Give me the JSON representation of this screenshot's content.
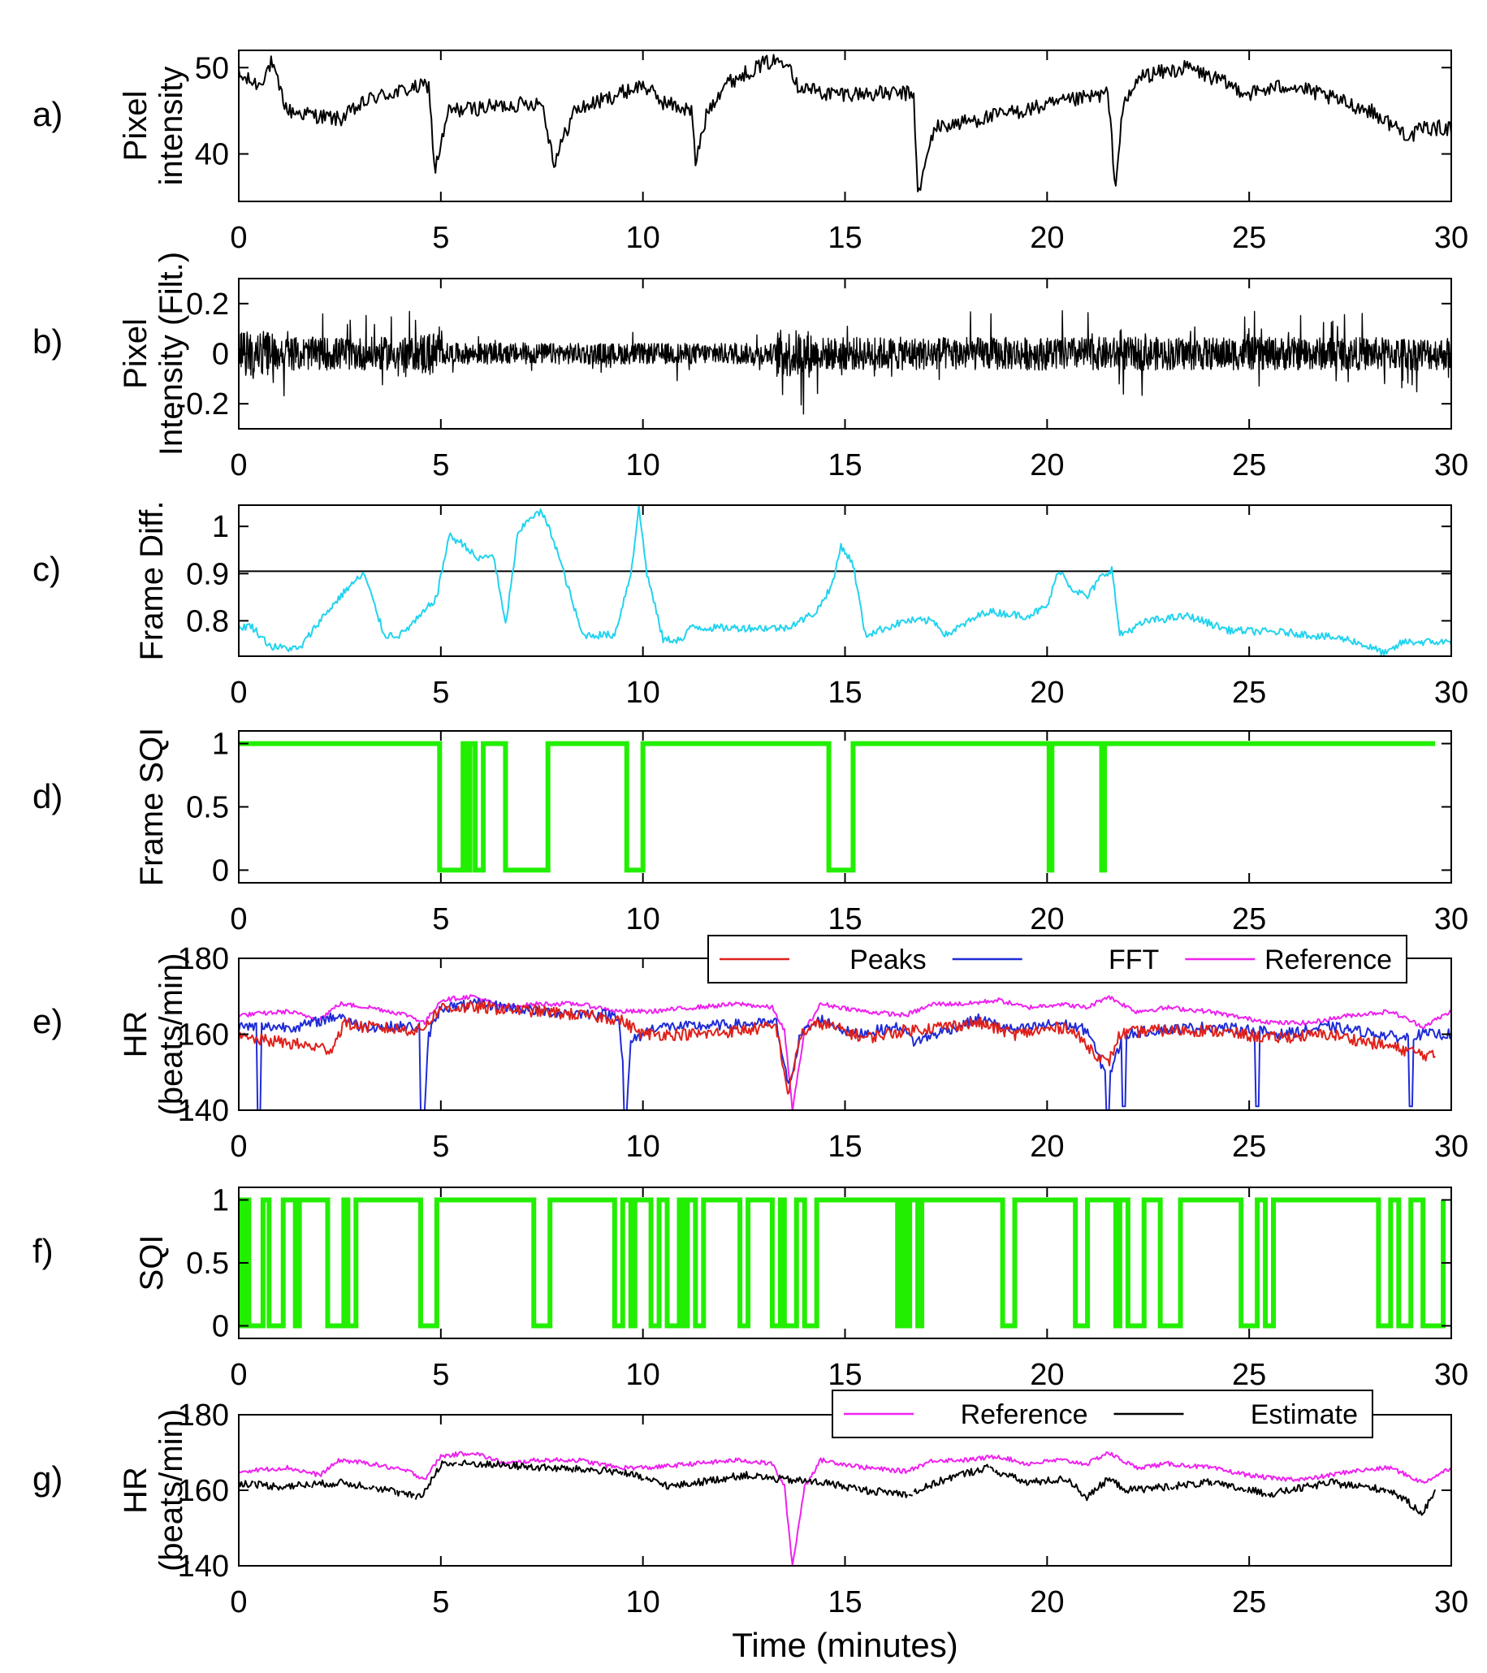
{
  "figure": {
    "xlabel": "Time (minutes)",
    "xlim": [
      0,
      30
    ],
    "xticks": [
      "0",
      "5",
      "10",
      "15",
      "20",
      "25",
      "30"
    ]
  },
  "chart_data": [
    {
      "panel": "a)",
      "type": "line",
      "ylabel": [
        "Pixel",
        "intensity"
      ],
      "ylim": [
        34.5,
        52
      ],
      "yticks": [
        "40",
        "50"
      ],
      "yticks_values": [
        40,
        50
      ],
      "series": [
        {
          "color": "#000000",
          "kind": "noisy",
          "x": [
            0,
            0.5,
            0.8,
            1.2,
            2.5,
            3.3,
            4.7,
            4.85,
            5.2,
            7.5,
            7.8,
            8.3,
            10,
            10.5,
            11.2,
            11.3,
            11.6,
            12,
            13,
            13.6,
            13.8,
            14.5,
            16.7,
            16.8,
            17.2,
            21.5,
            21.7,
            21.85,
            22.3,
            23.5,
            25,
            26,
            28,
            29,
            29.3,
            30
          ],
          "y": [
            49,
            48,
            50.5,
            45,
            44,
            46.5,
            48,
            38,
            45,
            46,
            39,
            45,
            48,
            46,
            45,
            39,
            45,
            48,
            50.5,
            51,
            48,
            47,
            47,
            35,
            43,
            47,
            36,
            45,
            49,
            50,
            47,
            48,
            45,
            42,
            43,
            43
          ],
          "noise": 0.9
        }
      ]
    },
    {
      "panel": "b)",
      "type": "line",
      "ylabel": [
        "Pixel",
        "Intensity (Filt.)"
      ],
      "ylim": [
        -0.3,
        0.3
      ],
      "yticks": [
        "-0.2",
        "0",
        "0.2"
      ],
      "yticks_values": [
        -0.2,
        0,
        0.2
      ],
      "series": [
        {
          "color": "#000000",
          "kind": "oscillation",
          "amplitude": 0.06
        }
      ]
    },
    {
      "panel": "c)",
      "type": "line",
      "ylabel": [
        "Frame Diff."
      ],
      "ylim": [
        0.725,
        1.045
      ],
      "yticks": [
        "0.8",
        "0.9",
        "1"
      ],
      "yticks_values": [
        0.8,
        0.9,
        1
      ],
      "reference_line": 0.905,
      "series": [
        {
          "color": "#22d3ee",
          "kind": "noisy",
          "x": [
            0,
            0.3,
            0.8,
            1.5,
            2.0,
            2.7,
            3.1,
            3.6,
            4.0,
            4.5,
            4.9,
            5.2,
            5.6,
            5.9,
            6.3,
            6.6,
            6.9,
            7.2,
            7.5,
            7.8,
            8.5,
            9.3,
            9.7,
            9.9,
            10.1,
            10.5,
            11.0,
            11.2,
            11.5,
            13.5,
            13.9,
            14.3,
            14.7,
            14.9,
            15.2,
            15.5,
            16.5,
            17.2,
            17.5,
            18.5,
            19.5,
            20.0,
            20.3,
            20.6,
            21.0,
            21.3,
            21.6,
            21.8,
            22.5,
            23.5,
            24.5,
            26,
            27.5,
            28.4,
            28.8,
            30
          ],
          "y": [
            0.785,
            0.79,
            0.745,
            0.74,
            0.8,
            0.87,
            0.9,
            0.77,
            0.77,
            0.81,
            0.85,
            0.98,
            0.96,
            0.93,
            0.94,
            0.79,
            0.98,
            1.02,
            1.03,
            0.97,
            0.77,
            0.77,
            0.9,
            1.04,
            0.9,
            0.76,
            0.76,
            0.79,
            0.785,
            0.785,
            0.8,
            0.82,
            0.88,
            0.96,
            0.92,
            0.77,
            0.8,
            0.8,
            0.77,
            0.82,
            0.81,
            0.83,
            0.91,
            0.87,
            0.85,
            0.89,
            0.91,
            0.77,
            0.8,
            0.81,
            0.78,
            0.775,
            0.76,
            0.73,
            0.755,
            0.755
          ],
          "noise": 0.008
        }
      ]
    },
    {
      "panel": "d)",
      "type": "step",
      "ylabel": [
        "Frame SQI"
      ],
      "ylim": [
        -0.1,
        1.1
      ],
      "yticks": [
        "0",
        "0.5",
        "1"
      ],
      "yticks_values": [
        0,
        0.5,
        1
      ],
      "series": [
        {
          "color": "#22ee00",
          "width": 6,
          "xmax": 29.6,
          "segments_zero": [
            [
              4.97,
              5.55
            ],
            [
              5.65,
              5.72
            ],
            [
              5.85,
              6.05
            ],
            [
              6.6,
              7.65
            ],
            [
              9.6,
              10.0
            ],
            [
              14.6,
              15.2
            ],
            [
              20.05,
              20.12
            ],
            [
              21.35,
              21.42
            ]
          ]
        }
      ]
    },
    {
      "panel": "e)",
      "type": "line",
      "ylabel": [
        "HR",
        "(beats/min)"
      ],
      "ylim": [
        140,
        180
      ],
      "yticks": [
        "140",
        "160",
        "180"
      ],
      "yticks_values": [
        140,
        160,
        180
      ],
      "legend": {
        "placement": "top-right",
        "entries": [
          {
            "name": "Peaks",
            "color": "#e0201a"
          },
          {
            "name": "FFT",
            "color": "#1f2bd6"
          },
          {
            "name": "Reference",
            "color": "#ee22ee"
          }
        ]
      },
      "series": [
        {
          "name": "Reference",
          "color": "#ee22ee",
          "kind": "noisy",
          "x": [
            0,
            1.2,
            2,
            2.5,
            3.3,
            4.2,
            4.6,
            5,
            5.8,
            6.6,
            7.4,
            8.4,
            9.4,
            10.2,
            11.2,
            12.4,
            13.2,
            13.5,
            13.7,
            14.0,
            14.4,
            15.5,
            16.5,
            17.2,
            18,
            18.8,
            19.5,
            20.3,
            21.0,
            21.5,
            22.2,
            23,
            24,
            25,
            25.7,
            26.5,
            27.5,
            28.5,
            29.3,
            30
          ],
          "y": [
            165,
            166,
            164,
            168,
            167,
            165,
            163,
            169,
            170,
            167,
            168,
            168,
            166,
            166,
            167,
            168,
            167,
            161,
            140,
            161,
            168,
            166,
            165,
            168,
            168,
            169,
            167,
            168,
            167,
            170,
            166,
            167,
            166,
            164,
            163,
            163,
            165,
            166,
            162,
            166
          ],
          "noise": 0.6
        },
        {
          "name": "FFT",
          "color": "#1f2bd6",
          "kind": "noisy",
          "x": [
            0,
            0.5,
            1.5,
            2.5,
            3.0,
            4.5,
            4.6,
            4.7,
            5,
            6,
            7.5,
            9.4,
            9.6,
            9.7,
            10.3,
            11,
            13.3,
            13.6,
            13.9,
            14.4,
            15.2,
            16.4,
            16.7,
            18.3,
            19.2,
            20.3,
            21.0,
            21.5,
            21.9,
            22.6,
            24,
            25.2,
            25.8,
            27,
            28.8,
            29.3,
            30
          ],
          "y": [
            162,
            162,
            162,
            165,
            162,
            162,
            140,
            160,
            167,
            168,
            166,
            165,
            140,
            158,
            162,
            162,
            163,
            146,
            160,
            164,
            160,
            162,
            158,
            164,
            161,
            163,
            161,
            148,
            160,
            161,
            162,
            161,
            160,
            162,
            159,
            160,
            160
          ],
          "noise": 1.4,
          "dips": [
            [
              0.5,
              140
            ],
            [
              4.55,
              140
            ],
            [
              9.55,
              140
            ],
            [
              21.5,
              140
            ],
            [
              21.9,
              141
            ],
            [
              25.2,
              141
            ],
            [
              29.0,
              141
            ]
          ]
        },
        {
          "name": "Peaks",
          "color": "#e0201a",
          "kind": "noisy",
          "xmax": 29.6,
          "x": [
            0,
            1,
            2.3,
            2.6,
            3.0,
            4.5,
            5,
            6,
            7.5,
            9.4,
            10,
            11.5,
            13.3,
            13.6,
            13.9,
            14.4,
            15.5,
            16.5,
            18.3,
            19.2,
            20.5,
            21.0,
            21.5,
            21.8,
            22.5,
            24,
            25.5,
            27,
            28.8,
            29.6
          ],
          "y": [
            159,
            158,
            156,
            163,
            162,
            161,
            167,
            167,
            166,
            164,
            160,
            160,
            162,
            144,
            160,
            163,
            159,
            161,
            163,
            160,
            162,
            157,
            152,
            160,
            161,
            161,
            159,
            160,
            156,
            154
          ],
          "noise": 1.6
        }
      ]
    },
    {
      "panel": "f)",
      "type": "step",
      "ylabel": [
        "SQI"
      ],
      "ylim": [
        -0.1,
        1.1
      ],
      "yticks": [
        "0",
        "0.5",
        "1"
      ],
      "yticks_values": [
        0,
        0.5,
        1
      ],
      "series": [
        {
          "color": "#22ee00",
          "width": 6,
          "xmax": 29.8,
          "segments_zero": [
            [
              0.05,
              0.15
            ],
            [
              0.25,
              0.6
            ],
            [
              0.75,
              1.1
            ],
            [
              1.1,
              1.1
            ],
            [
              1.4,
              1.5
            ],
            [
              2.2,
              2.6
            ],
            [
              2.7,
              2.9
            ],
            [
              4.5,
              4.9
            ],
            [
              7.3,
              7.7
            ],
            [
              9.3,
              9.5
            ],
            [
              9.7,
              9.8
            ],
            [
              10.2,
              10.4
            ],
            [
              10.6,
              10.9
            ],
            [
              11.0,
              11.1
            ],
            [
              11.3,
              11.5
            ],
            [
              12.4,
              12.6
            ],
            [
              13.2,
              13.4
            ],
            [
              13.5,
              13.8
            ],
            [
              14.0,
              14.3
            ],
            [
              16.3,
              16.4
            ],
            [
              16.5,
              16.6
            ],
            [
              16.8,
              16.9
            ],
            [
              18.9,
              19.2
            ],
            [
              20.7,
              21.0
            ],
            [
              21.7,
              21.8
            ],
            [
              22.0,
              22.4
            ],
            [
              22.8,
              23.3
            ],
            [
              24.8,
              25.2
            ],
            [
              25.4,
              25.6
            ],
            [
              28.2,
              28.5
            ],
            [
              28.7,
              29.0
            ],
            [
              29.3,
              29.8
            ]
          ]
        }
      ]
    },
    {
      "panel": "g)",
      "type": "line",
      "ylabel": [
        "HR",
        "(beats/min)"
      ],
      "ylim": [
        140,
        180
      ],
      "yticks": [
        "140",
        "160",
        "180"
      ],
      "yticks_values": [
        140,
        160,
        180
      ],
      "legend": {
        "placement": "top-right",
        "entries": [
          {
            "name": "Reference",
            "color": "#ee22ee"
          },
          {
            "name": "Estimate",
            "color": "#000000"
          }
        ]
      },
      "series": [
        {
          "name": "Reference",
          "color": "#ee22ee",
          "kind": "noisy",
          "x": [
            0,
            1.2,
            2,
            2.5,
            3.3,
            4.2,
            4.6,
            5,
            5.8,
            6.6,
            7.4,
            8.4,
            9.4,
            10.2,
            11.2,
            12.4,
            13.2,
            13.5,
            13.7,
            14.0,
            14.4,
            15.5,
            16.5,
            17.2,
            18,
            18.8,
            19.5,
            20.3,
            21.0,
            21.5,
            22.2,
            23,
            24,
            25,
            25.7,
            26.5,
            27.5,
            28.5,
            29.3,
            30
          ],
          "y": [
            165,
            166,
            164,
            168,
            167,
            165,
            163,
            169,
            170,
            167,
            168,
            168,
            166,
            166,
            167,
            168,
            167,
            161,
            140,
            161,
            168,
            166,
            165,
            168,
            168,
            169,
            167,
            168,
            167,
            170,
            166,
            167,
            166,
            164,
            163,
            163,
            165,
            166,
            162,
            166
          ],
          "noise": 0.6
        },
        {
          "name": "Estimate",
          "color": "#000000",
          "kind": "noisy",
          "gapped": true,
          "xmax": 29.6,
          "x": [
            0,
            1,
            2.5,
            3.3,
            4.5,
            5,
            6,
            7.5,
            9.4,
            10.7,
            12.5,
            13.3,
            14.5,
            15.5,
            16.6,
            17.5,
            18.5,
            19.5,
            20.5,
            21.0,
            21.5,
            22.0,
            23,
            24,
            25.5,
            27,
            28.5,
            29.3,
            29.6
          ],
          "y": [
            162,
            161,
            162,
            161,
            158,
            167,
            167,
            166,
            165,
            161,
            164,
            163,
            162,
            160,
            159,
            163,
            166,
            162,
            163,
            158,
            163,
            160,
            161,
            162,
            159,
            162,
            160,
            154,
            160
          ],
          "noise": 1.0
        }
      ]
    }
  ]
}
